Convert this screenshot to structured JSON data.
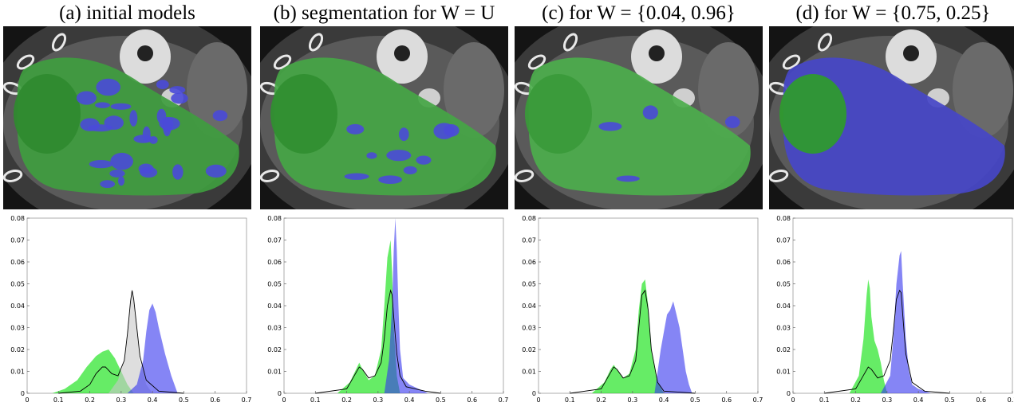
{
  "panels": [
    {
      "title": "(a) initial models",
      "overlay": "mixed",
      "chart_data": {
        "type": "area",
        "xlim": [
          0,
          0.7
        ],
        "ylim": [
          0,
          0.08
        ],
        "xticks": [
          "0",
          "0.1",
          "0.2",
          "0.3",
          "0.4",
          "0.5",
          "0.6",
          "0.7"
        ],
        "yticks": [
          "0",
          "0.01",
          "0.02",
          "0.03",
          "0.04",
          "0.05",
          "0.06",
          "0.07",
          "0.08"
        ],
        "series": [
          {
            "color": "#00e000",
            "kind": "filled",
            "x": [
              0.08,
              0.12,
              0.16,
              0.19,
              0.22,
              0.24,
              0.26,
              0.28,
              0.3,
              0.32,
              0.34
            ],
            "y": [
              0,
              0.002,
              0.006,
              0.012,
              0.017,
              0.019,
              0.02,
              0.016,
              0.01,
              0.004,
              0
            ]
          },
          {
            "color": "#c8c8c8",
            "kind": "filled",
            "x": [
              0.26,
              0.29,
              0.31,
              0.32,
              0.33,
              0.335,
              0.34,
              0.35,
              0.36,
              0.38,
              0.4
            ],
            "y": [
              0,
              0.006,
              0.015,
              0.025,
              0.04,
              0.047,
              0.043,
              0.03,
              0.015,
              0.004,
              0
            ]
          },
          {
            "color": "#3333ee",
            "kind": "filled",
            "x": [
              0.32,
              0.35,
              0.37,
              0.38,
              0.39,
              0.4,
              0.41,
              0.42,
              0.44,
              0.46,
              0.48
            ],
            "y": [
              0,
              0.004,
              0.015,
              0.028,
              0.038,
              0.041,
              0.037,
              0.03,
              0.018,
              0.008,
              0
            ]
          },
          {
            "color": "#000000",
            "kind": "line",
            "x": [
              0.1,
              0.17,
              0.2,
              0.22,
              0.24,
              0.25,
              0.27,
              0.29,
              0.31,
              0.32,
              0.33,
              0.335,
              0.34,
              0.35,
              0.36,
              0.38,
              0.42,
              0.5
            ],
            "y": [
              0,
              0.001,
              0.004,
              0.009,
              0.012,
              0.012,
              0.009,
              0.008,
              0.015,
              0.027,
              0.042,
              0.047,
              0.043,
              0.03,
              0.017,
              0.006,
              0.001,
              0
            ]
          }
        ]
      }
    },
    {
      "title": "(b) segmentation for W = U",
      "overlay": "mostly-green",
      "chart_data": {
        "type": "area",
        "xlim": [
          0,
          0.7
        ],
        "ylim": [
          0,
          0.08
        ],
        "xticks": [
          "0",
          "0.1",
          "0.2",
          "0.3",
          "0.4",
          "0.5",
          "0.6",
          "0.7"
        ],
        "yticks": [
          "0",
          "0.01",
          "0.02",
          "0.03",
          "0.04",
          "0.05",
          "0.06",
          "0.07",
          "0.08"
        ],
        "series": [
          {
            "color": "#00e000",
            "kind": "filled",
            "x": [
              0.17,
              0.21,
              0.23,
              0.24,
              0.25,
              0.27,
              0.29,
              0.31,
              0.32,
              0.33,
              0.34,
              0.345,
              0.35,
              0.36,
              0.37
            ],
            "y": [
              0,
              0.005,
              0.011,
              0.014,
              0.011,
              0.006,
              0.008,
              0.02,
              0.04,
              0.062,
              0.07,
              0.055,
              0.03,
              0.008,
              0
            ]
          },
          {
            "color": "#3333ee",
            "kind": "filled",
            "x": [
              0.32,
              0.335,
              0.345,
              0.35,
              0.355,
              0.36,
              0.365,
              0.37,
              0.38,
              0.4,
              0.43,
              0.46
            ],
            "y": [
              0,
              0.015,
              0.04,
              0.065,
              0.08,
              0.065,
              0.04,
              0.02,
              0.007,
              0.004,
              0.002,
              0
            ]
          },
          {
            "color": "#000000",
            "kind": "line",
            "x": [
              0.1,
              0.2,
              0.22,
              0.24,
              0.25,
              0.27,
              0.29,
              0.31,
              0.32,
              0.33,
              0.34,
              0.345,
              0.35,
              0.36,
              0.37,
              0.39,
              0.45,
              0.5
            ],
            "y": [
              0,
              0.002,
              0.007,
              0.012,
              0.011,
              0.007,
              0.008,
              0.014,
              0.025,
              0.04,
              0.047,
              0.045,
              0.035,
              0.018,
              0.008,
              0.003,
              0.001,
              0
            ]
          }
        ]
      }
    },
    {
      "title": "(c) for W = {0.04, 0.96}",
      "overlay": "green",
      "chart_data": {
        "type": "area",
        "xlim": [
          0,
          0.7
        ],
        "ylim": [
          0,
          0.08
        ],
        "xticks": [
          "0",
          "0.1",
          "0.2",
          "0.3",
          "0.4",
          "0.5",
          "0.6",
          "0.7"
        ],
        "yticks": [
          "0",
          "0.01",
          "0.02",
          "0.03",
          "0.04",
          "0.05",
          "0.06",
          "0.07",
          "0.08"
        ],
        "series": [
          {
            "color": "#00e000",
            "kind": "filled",
            "x": [
              0.17,
              0.21,
              0.23,
              0.24,
              0.25,
              0.27,
              0.29,
              0.31,
              0.32,
              0.33,
              0.34,
              0.35,
              0.36,
              0.38,
              0.4
            ],
            "y": [
              0,
              0.005,
              0.011,
              0.013,
              0.011,
              0.007,
              0.009,
              0.02,
              0.038,
              0.05,
              0.052,
              0.04,
              0.02,
              0.005,
              0
            ]
          },
          {
            "color": "#3333ee",
            "kind": "filled",
            "x": [
              0.37,
              0.38,
              0.39,
              0.4,
              0.41,
              0.42,
              0.43,
              0.44,
              0.45,
              0.46,
              0.47,
              0.48,
              0.49
            ],
            "y": [
              0,
              0.01,
              0.02,
              0.028,
              0.036,
              0.038,
              0.042,
              0.036,
              0.03,
              0.02,
              0.01,
              0.004,
              0
            ]
          },
          {
            "color": "#000000",
            "kind": "line",
            "x": [
              0.1,
              0.2,
              0.22,
              0.24,
              0.25,
              0.27,
              0.29,
              0.31,
              0.32,
              0.33,
              0.34,
              0.35,
              0.36,
              0.38,
              0.4,
              0.45,
              0.5
            ],
            "y": [
              0,
              0.002,
              0.007,
              0.012,
              0.011,
              0.007,
              0.008,
              0.015,
              0.03,
              0.045,
              0.047,
              0.038,
              0.02,
              0.005,
              0.001,
              0.0005,
              0
            ]
          }
        ]
      }
    },
    {
      "title": "(d) for W = {0.75, 0.25}",
      "overlay": "mostly-blue",
      "chart_data": {
        "type": "area",
        "xlim": [
          0,
          0.7
        ],
        "ylim": [
          0,
          0.08
        ],
        "xticks": [
          "0",
          "0.1",
          "0.2",
          "0.3",
          "0.4",
          "0.5",
          "0.6",
          "0.7"
        ],
        "yticks": [
          "0",
          "0.01",
          "0.02",
          "0.03",
          "0.04",
          "0.05",
          "0.06",
          "0.07",
          "0.08"
        ],
        "series": [
          {
            "color": "#00e000",
            "kind": "filled",
            "x": [
              0.18,
              0.21,
              0.225,
              0.235,
              0.24,
              0.245,
              0.25,
              0.26,
              0.27,
              0.28,
              0.29,
              0.3
            ],
            "y": [
              0,
              0.008,
              0.025,
              0.045,
              0.052,
              0.048,
              0.035,
              0.024,
              0.02,
              0.014,
              0.006,
              0
            ]
          },
          {
            "color": "#3333ee",
            "kind": "filled",
            "x": [
              0.28,
              0.31,
              0.32,
              0.33,
              0.34,
              0.345,
              0.35,
              0.36,
              0.37,
              0.38,
              0.4,
              0.44
            ],
            "y": [
              0,
              0.008,
              0.025,
              0.05,
              0.063,
              0.065,
              0.05,
              0.025,
              0.01,
              0.004,
              0.002,
              0
            ]
          },
          {
            "color": "#000000",
            "kind": "line",
            "x": [
              0.1,
              0.2,
              0.22,
              0.24,
              0.25,
              0.27,
              0.29,
              0.31,
              0.32,
              0.33,
              0.34,
              0.345,
              0.35,
              0.36,
              0.38,
              0.42,
              0.5
            ],
            "y": [
              0,
              0.002,
              0.007,
              0.012,
              0.011,
              0.007,
              0.008,
              0.015,
              0.028,
              0.043,
              0.047,
              0.046,
              0.036,
              0.018,
              0.005,
              0.001,
              0
            ]
          }
        ]
      }
    }
  ]
}
